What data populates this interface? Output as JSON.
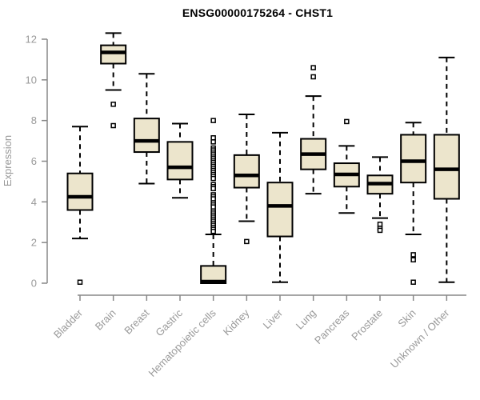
{
  "chart_data": {
    "type": "boxplot",
    "title": "ENSG00000175264 - CHST1",
    "ylabel": "Expression",
    "ylim": [
      0,
      12.5
    ],
    "yticks": [
      0,
      2,
      4,
      6,
      8,
      10,
      12
    ],
    "grid": false,
    "categories": [
      "Bladder",
      "Brain",
      "Breast",
      "Gastric",
      "Hematopoietic cells",
      "Kidney",
      "Liver",
      "Lung",
      "Pancreas",
      "Prostate",
      "Skin",
      "Unknown / Other"
    ],
    "series": [
      {
        "name": "Bladder",
        "min": 2.2,
        "q1": 3.6,
        "median": 4.25,
        "q3": 5.4,
        "max": 7.7,
        "outliers": [
          0.05
        ]
      },
      {
        "name": "Brain",
        "min": 9.5,
        "q1": 10.8,
        "median": 11.35,
        "q3": 11.7,
        "max": 12.3,
        "outliers": [
          8.8,
          7.75
        ]
      },
      {
        "name": "Breast",
        "min": 4.9,
        "q1": 6.45,
        "median": 7.0,
        "q3": 8.1,
        "max": 10.3,
        "outliers": []
      },
      {
        "name": "Gastric",
        "min": 4.2,
        "q1": 5.1,
        "median": 5.7,
        "q3": 6.95,
        "max": 7.85,
        "outliers": []
      },
      {
        "name": "Hematopoietic cells",
        "min": 0.0,
        "q1": 0.0,
        "median": 0.08,
        "q3": 0.85,
        "max": 2.4,
        "outliers": [
          8.0,
          7.15,
          6.95,
          6.65,
          6.55,
          6.45,
          6.35,
          6.25,
          6.15,
          6.05,
          5.95,
          5.85,
          5.75,
          5.65,
          5.55,
          5.45,
          5.35,
          5.25,
          5.15,
          4.85,
          4.75,
          4.65,
          4.35,
          4.25,
          4.15,
          3.95,
          3.85,
          3.75,
          3.55,
          3.45,
          3.35,
          3.25,
          3.15,
          3.05,
          2.95,
          2.85,
          2.75,
          2.65,
          2.55
        ]
      },
      {
        "name": "Kidney",
        "min": 3.05,
        "q1": 4.7,
        "median": 5.3,
        "q3": 6.3,
        "max": 8.3,
        "outliers": [
          2.05
        ]
      },
      {
        "name": "Liver",
        "min": 0.05,
        "q1": 2.3,
        "median": 3.8,
        "q3": 4.95,
        "max": 7.4,
        "outliers": []
      },
      {
        "name": "Lung",
        "min": 4.4,
        "q1": 5.6,
        "median": 6.35,
        "q3": 7.1,
        "max": 9.2,
        "outliers": [
          10.6,
          10.15
        ]
      },
      {
        "name": "Pancreas",
        "min": 3.45,
        "q1": 4.75,
        "median": 5.35,
        "q3": 5.9,
        "max": 6.75,
        "outliers": [
          7.95
        ]
      },
      {
        "name": "Prostate",
        "min": 3.2,
        "q1": 4.4,
        "median": 4.9,
        "q3": 5.3,
        "max": 6.2,
        "outliers": [
          2.9,
          2.7,
          2.6
        ]
      },
      {
        "name": "Skin",
        "min": 2.4,
        "q1": 4.95,
        "median": 6.0,
        "q3": 7.3,
        "max": 7.9,
        "outliers": [
          1.4,
          1.15,
          0.05
        ]
      },
      {
        "name": "Unknown / Other",
        "min": 0.05,
        "q1": 4.15,
        "median": 5.6,
        "q3": 7.3,
        "max": 11.1,
        "outliers": []
      }
    ],
    "colors": {
      "box_fill": "#ECE5CC",
      "box_stroke": "#000000",
      "median": "#000000",
      "axis": "#888888",
      "tick_label": "#999999",
      "title": "#000000",
      "background": "#ffffff"
    },
    "legend": null
  }
}
